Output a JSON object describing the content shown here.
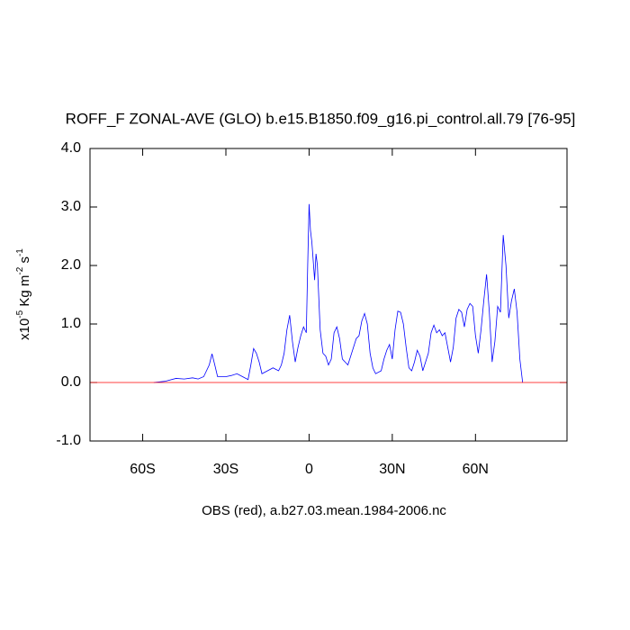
{
  "chart_data": {
    "type": "line",
    "title": "ROFF_F ZONAL-AVE (GLO) b.e15.B1850.f09_g16.pi_control.all.79 [76-95]",
    "x_label": "OBS (red), a.b27.03.mean.1984-2006.nc",
    "y_label": [
      "x10",
      "-5",
      " Kg m",
      "-2",
      " s",
      "-1"
    ],
    "xlim": [
      -79,
      93
    ],
    "ylim": [
      -1,
      4
    ],
    "xticks": [
      {
        "value": -60,
        "label": "60S"
      },
      {
        "value": -30,
        "label": "30S"
      },
      0,
      {
        "value": 30,
        "label": "30N"
      },
      {
        "value": 60,
        "label": "60N"
      }
    ],
    "yticks": [
      {
        "value": -1,
        "label": "-1.0"
      },
      {
        "value": 0,
        "label": "0.0"
      },
      {
        "value": 1,
        "label": "1.0"
      },
      {
        "value": 2,
        "label": "2.0"
      },
      {
        "value": 3,
        "label": "3.0"
      },
      {
        "value": 4,
        "label": "4.0"
      }
    ],
    "series": [
      {
        "color": "#0000ff",
        "x": [
          -56,
          -52,
          -48,
          -45,
          -42,
          -40,
          -38,
          -36,
          -35,
          -34,
          -33,
          -30,
          -28,
          -26,
          -24,
          -22,
          -21,
          -20,
          -19,
          -18,
          -17,
          -15,
          -13,
          -11,
          -10,
          -9,
          -8,
          -7,
          -6,
          -5,
          -4,
          -3,
          -2,
          -1,
          -0.5,
          0,
          0.5,
          1,
          2,
          2.5,
          3,
          4,
          5,
          6,
          7,
          8,
          9,
          10,
          11,
          12,
          13,
          14,
          16,
          17,
          18,
          19,
          20,
          21,
          22,
          23,
          24,
          26,
          27,
          28,
          29,
          30,
          31,
          32,
          33,
          34,
          35,
          36,
          37,
          38,
          39,
          40,
          41,
          43,
          44,
          45,
          46,
          47,
          48,
          49,
          50,
          51,
          52,
          53,
          54,
          55,
          56,
          57,
          58,
          59,
          60,
          61,
          62,
          63,
          64,
          65,
          66,
          67,
          68,
          69,
          70,
          71,
          72,
          73,
          74,
          75,
          76,
          77
        ],
        "values": [
          0,
          0.02,
          0.07,
          0.06,
          0.08,
          0.06,
          0.1,
          0.3,
          0.49,
          0.3,
          0.1,
          0.1,
          0.12,
          0.15,
          0.1,
          0.05,
          0.3,
          0.58,
          0.5,
          0.35,
          0.15,
          0.2,
          0.25,
          0.2,
          0.3,
          0.5,
          0.9,
          1.15,
          0.7,
          0.35,
          0.6,
          0.8,
          0.95,
          0.85,
          2.0,
          3.05,
          2.6,
          2.4,
          1.75,
          2.2,
          2.0,
          0.9,
          0.5,
          0.45,
          0.3,
          0.4,
          0.85,
          0.95,
          0.75,
          0.4,
          0.35,
          0.3,
          0.6,
          0.75,
          0.8,
          1.05,
          1.18,
          1.0,
          0.5,
          0.25,
          0.15,
          0.2,
          0.4,
          0.55,
          0.65,
          0.4,
          0.9,
          1.22,
          1.2,
          1.0,
          0.6,
          0.25,
          0.2,
          0.35,
          0.55,
          0.45,
          0.2,
          0.5,
          0.85,
          0.98,
          0.85,
          0.9,
          0.8,
          0.85,
          0.6,
          0.35,
          0.6,
          1.1,
          1.25,
          1.2,
          0.95,
          1.25,
          1.35,
          1.3,
          0.8,
          0.5,
          0.9,
          1.4,
          1.85,
          1.2,
          0.35,
          0.7,
          1.3,
          1.2,
          2.52,
          2.0,
          1.1,
          1.4,
          1.6,
          1.2,
          0.4,
          0
        ]
      },
      {
        "color": "#ff0000",
        "x": [
          -79,
          93
        ],
        "values": [
          0,
          0
        ]
      }
    ]
  }
}
